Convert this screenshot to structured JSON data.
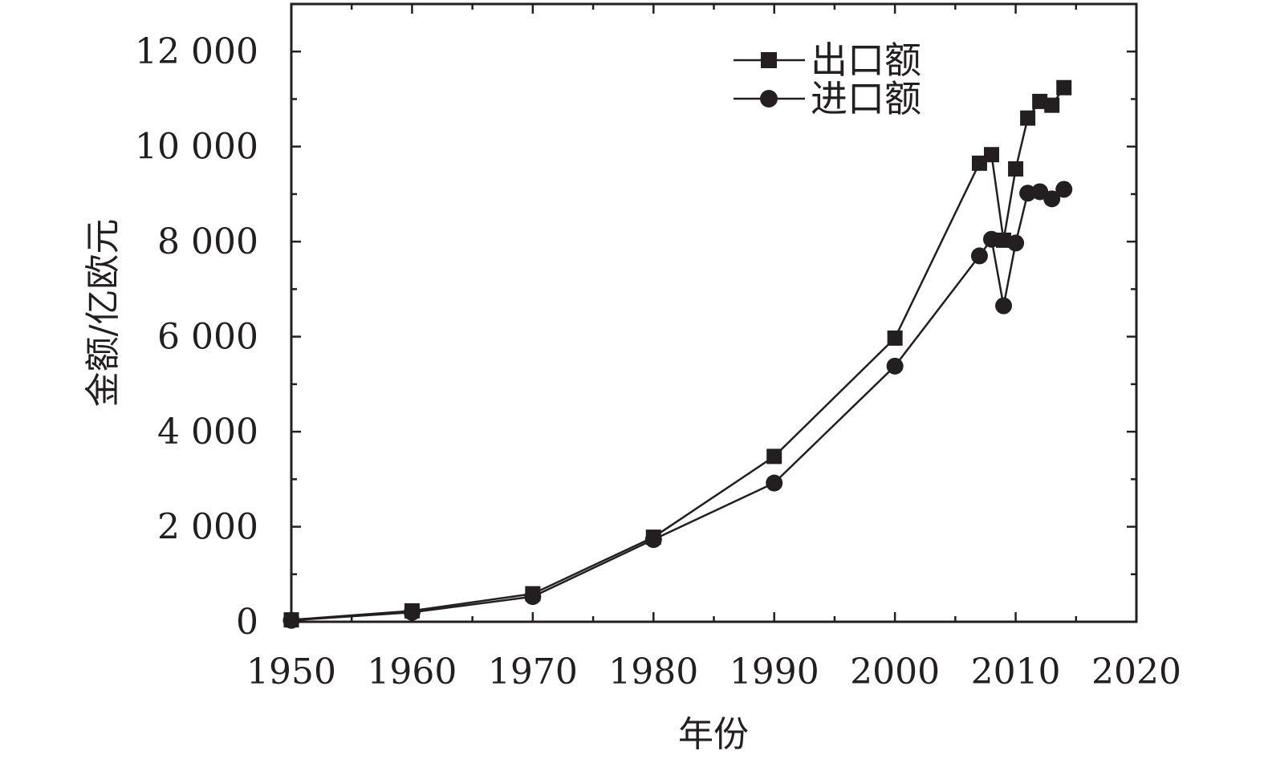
{
  "chart_data": {
    "type": "line",
    "xlabel": "年份",
    "ylabel": "金额/亿欧元",
    "xlim": [
      1950,
      2020
    ],
    "ylim": [
      0,
      13000
    ],
    "x_ticks": [
      1950,
      1960,
      1970,
      1980,
      1990,
      2000,
      2010,
      2020
    ],
    "x_tick_labels": [
      "1950",
      "1960",
      "1970",
      "1980",
      "1990",
      "2000",
      "2010",
      "2020"
    ],
    "y_ticks": [
      0,
      2000,
      4000,
      6000,
      8000,
      10000,
      12000
    ],
    "y_tick_labels": [
      "0",
      "2 000",
      "4 000",
      "6 000",
      "8 000",
      "10 000",
      "12 000"
    ],
    "grid": false,
    "legend_position": "top-right",
    "color": "#231f20",
    "series": [
      {
        "name": "出口额",
        "marker": "square",
        "x": [
          1950,
          1960,
          1970,
          1980,
          1990,
          2000,
          2007,
          2008,
          2009,
          2010,
          2011,
          2012,
          2013,
          2014
        ],
        "y": [
          40,
          230,
          590,
          1780,
          3480,
          5970,
          9650,
          9830,
          8030,
          9530,
          10600,
          10950,
          10870,
          11240
        ]
      },
      {
        "name": "进口额",
        "marker": "circle",
        "x": [
          1950,
          1960,
          1970,
          1980,
          1990,
          2000,
          2007,
          2008,
          2009,
          2010,
          2011,
          2012,
          2013,
          2014
        ],
        "y": [
          30,
          200,
          530,
          1730,
          2920,
          5380,
          7700,
          8050,
          6650,
          7970,
          9020,
          9050,
          8900,
          9100
        ]
      }
    ]
  }
}
